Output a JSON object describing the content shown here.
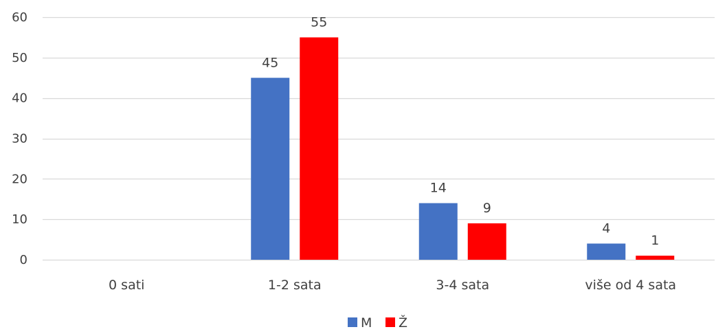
{
  "chart_data": {
    "type": "bar",
    "categories": [
      "0 sati",
      "1-2 sata",
      "3-4 sata",
      "više od 4 sata"
    ],
    "series": [
      {
        "name": "M",
        "values": [
          0,
          45,
          14,
          4
        ],
        "labels": [
          "",
          "45",
          "14",
          "4"
        ],
        "color": "#4472C4"
      },
      {
        "name": "Ž",
        "values": [
          0,
          55,
          9,
          1
        ],
        "labels": [
          "",
          "55",
          "9",
          "1"
        ],
        "color": "#FF0000"
      }
    ],
    "yticks": [
      "0",
      "10",
      "20",
      "30",
      "40",
      "50",
      "60"
    ],
    "ylim": [
      0,
      60
    ],
    "grid": true,
    "legend_position": "bottom"
  }
}
